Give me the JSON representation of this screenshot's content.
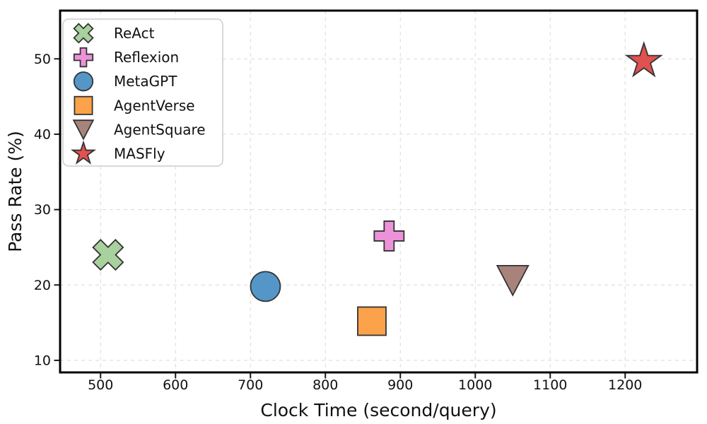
{
  "chart_data": {
    "type": "scatter",
    "title": "",
    "xlabel": "Clock Time (second/query)",
    "ylabel": "Pass Rate (%)",
    "xlim": [
      446,
      1296
    ],
    "ylim": [
      8.4,
      56.4
    ],
    "xticks": [
      500,
      600,
      700,
      800,
      900,
      1000,
      1100,
      1200
    ],
    "yticks": [
      10,
      20,
      30,
      40,
      50
    ],
    "grid": {
      "visible": true,
      "style": "dashed",
      "color": "#dcdcdc"
    },
    "marker_edge_color": "#333333",
    "legend": {
      "position": "upper-left",
      "entries": [
        "ReAct",
        "Reflexion",
        "MetaGPT",
        "AgentVerse",
        "AgentSquare",
        "MASFly"
      ]
    },
    "series": [
      {
        "name": "ReAct",
        "marker": "x-thick",
        "color": "#a8d19d",
        "x": [
          510
        ],
        "y": [
          24.0
        ]
      },
      {
        "name": "Reflexion",
        "marker": "plus-thick",
        "color": "#ec92d8",
        "x": [
          885
        ],
        "y": [
          26.5
        ]
      },
      {
        "name": "MetaGPT",
        "marker": "circle",
        "color": "#5596c8",
        "x": [
          720
        ],
        "y": [
          19.8
        ]
      },
      {
        "name": "AgentVerse",
        "marker": "square",
        "color": "#fba24a",
        "x": [
          862
        ],
        "y": [
          15.2
        ]
      },
      {
        "name": "AgentSquare",
        "marker": "triangle-down",
        "color": "#a8837c",
        "x": [
          1050
        ],
        "y": [
          20.6
        ]
      },
      {
        "name": "MASFly",
        "marker": "star",
        "color": "#e05150",
        "x": [
          1225
        ],
        "y": [
          49.7
        ]
      }
    ]
  }
}
